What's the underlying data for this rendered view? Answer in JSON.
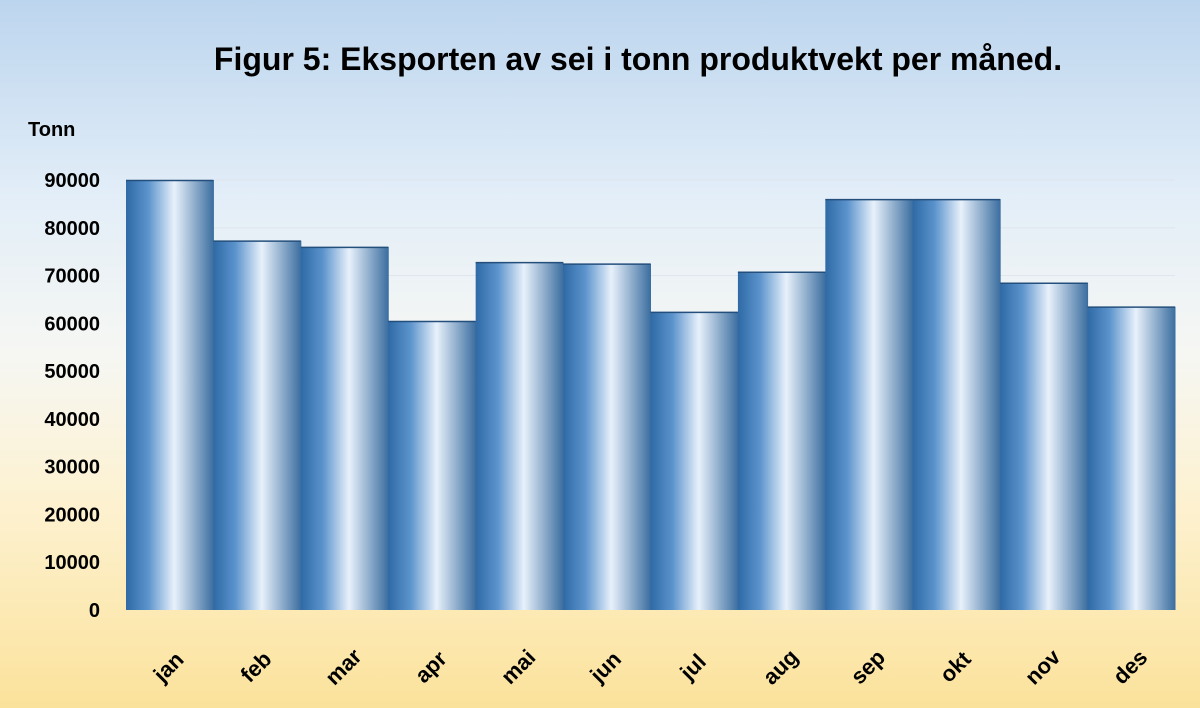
{
  "chart_data": {
    "type": "bar",
    "title": "Figur 5: Eksporten av sei i tonn produktvekt per måned.",
    "ylabel": "Tonn",
    "xlabel": "",
    "categories": [
      "jan",
      "feb",
      "mar",
      "apr",
      "mai",
      "jun",
      "jul",
      "aug",
      "sep",
      "okt",
      "nov",
      "des"
    ],
    "values": [
      90000,
      77300,
      76000,
      60500,
      72800,
      72500,
      62400,
      70800,
      86000,
      86000,
      68500,
      63500
    ],
    "ylim": [
      0,
      90000
    ],
    "yticks": [
      "0",
      "10000",
      "20000",
      "30000",
      "40000",
      "50000",
      "60000",
      "70000",
      "80000",
      "90000"
    ],
    "grid": true,
    "legend": "none",
    "colors": {
      "bar_edge": "#2f6aa6",
      "bar_mid": "#5b93cc",
      "bar_highlight": "#e8f1fb",
      "bar_right": "#3a6d9f"
    }
  }
}
